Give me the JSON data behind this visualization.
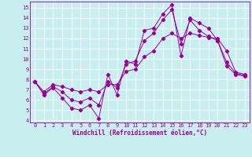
{
  "xlabel": "Windchill (Refroidissement éolien,°C)",
  "bg_color": "#c8eef0",
  "line_color": "#990099",
  "grid_color": "#aadddd",
  "xlim": [
    -0.5,
    23.5
  ],
  "ylim": [
    3.8,
    15.6
  ],
  "yticks": [
    4,
    5,
    6,
    7,
    8,
    9,
    10,
    11,
    12,
    13,
    14,
    15
  ],
  "xticks": [
    0,
    1,
    2,
    3,
    4,
    5,
    6,
    7,
    8,
    9,
    10,
    11,
    12,
    13,
    14,
    15,
    16,
    17,
    18,
    19,
    20,
    21,
    22,
    23
  ],
  "line1_x": [
    0,
    1,
    2,
    3,
    4,
    5,
    6,
    7,
    8,
    9,
    10,
    11,
    12,
    13,
    14,
    15,
    16,
    17,
    18,
    19,
    20,
    21,
    22,
    23
  ],
  "line1_y": [
    7.8,
    6.5,
    7.2,
    6.2,
    5.2,
    5.0,
    5.5,
    4.2,
    8.5,
    6.5,
    9.8,
    9.5,
    12.8,
    13.0,
    14.4,
    15.3,
    10.3,
    14.0,
    13.5,
    13.0,
    11.8,
    9.3,
    8.5,
    8.3
  ],
  "line2_x": [
    0,
    1,
    2,
    3,
    4,
    5,
    6,
    7,
    8,
    9,
    10,
    11,
    12,
    13,
    14,
    15,
    16,
    17,
    18,
    19,
    20,
    21,
    22,
    23
  ],
  "line2_y": [
    7.8,
    6.6,
    7.3,
    6.8,
    6.0,
    5.8,
    6.2,
    5.5,
    7.8,
    7.2,
    9.5,
    9.8,
    11.8,
    12.5,
    13.8,
    14.8,
    11.5,
    13.8,
    12.8,
    12.2,
    11.8,
    9.7,
    8.6,
    8.4
  ],
  "line3_x": [
    0,
    1,
    2,
    3,
    4,
    5,
    6,
    7,
    8,
    9,
    10,
    11,
    12,
    13,
    14,
    15,
    16,
    17,
    18,
    19,
    20,
    21,
    22,
    23
  ],
  "line3_y": [
    7.8,
    6.8,
    7.5,
    7.3,
    7.0,
    6.8,
    7.0,
    6.8,
    7.5,
    7.5,
    8.8,
    9.0,
    10.2,
    10.8,
    12.0,
    12.5,
    12.0,
    12.5,
    12.3,
    12.1,
    12.0,
    10.8,
    8.7,
    8.5
  ]
}
